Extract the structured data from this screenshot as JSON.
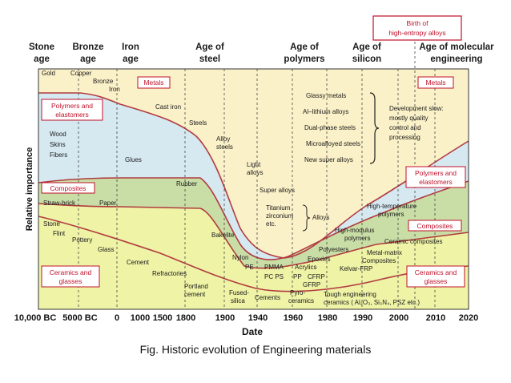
{
  "ages": {
    "stone": [
      "Stone",
      "age"
    ],
    "bronze": [
      "Bronze",
      "age"
    ],
    "iron": [
      "Iron",
      "age"
    ],
    "steel": [
      "Age of",
      "steel"
    ],
    "polymers": [
      "Age of",
      "polymers"
    ],
    "silicon": [
      "Age of",
      "silicon"
    ],
    "molecular": [
      "Age of molecular",
      "engineering"
    ],
    "hea": [
      "Birth of",
      "high-entropy alloys"
    ]
  },
  "boxes": {
    "metals": "Metals",
    "polymers": [
      "Polymers and",
      "elastomers"
    ],
    "composites": "Composites",
    "ceramics": [
      "Ceramics and",
      "glasses"
    ]
  },
  "labels": {
    "gold": "Gold",
    "copper": "Copper",
    "bronze": "Bronze",
    "iron": "Iron",
    "cast_iron": "Cast iron",
    "steels": "Steels",
    "alloy_steels": [
      "Alloy",
      "steels"
    ],
    "light_alloys": [
      "Light",
      "alloys"
    ],
    "super_alloys": "Super alloys",
    "titanium": [
      "Titanium",
      "zirconium",
      "etc."
    ],
    "alloys": "Alloys",
    "glassy_metals": "Glassy metals",
    "al_li": "Al–lithium alloys",
    "dual_phase": "Dual-phase steels",
    "microalloyed": "Microalloyed steels",
    "new_super": "New super alloys",
    "development": [
      "Development slow:",
      "mostly quality",
      "control and",
      "processing"
    ],
    "wood": "Wood",
    "skins": "Skins",
    "fibers": "Fibers",
    "glues": "Glues",
    "rubber": "Rubber",
    "straw_brick": "Straw-brick",
    "paper": "Paper",
    "stone": "Stone",
    "flint": "Flint",
    "pottery": "Pottery",
    "glass": "Glass",
    "cement": "Cement",
    "refractories": "Refractories",
    "portland": [
      "Portland",
      "cement"
    ],
    "bakelite": "Bakelite",
    "nylon": "Nylon",
    "pe": "PE",
    "pmma": [
      "PMMA",
      "PC  PS",
      "PP"
    ],
    "acrylics": "Acrylics",
    "fused_silica": [
      "Fused-",
      "silica"
    ],
    "cements": "Cements",
    "pyro": [
      "Pyro-",
      "ceramics"
    ],
    "high_temp": [
      "High-temperature",
      "polymers"
    ],
    "high_mod": [
      "High-modulus",
      "polymers"
    ],
    "polyesters": "Polyesters",
    "epoxies": "Epoxies",
    "cfrp": "CFRP",
    "gfrp": "GFRP",
    "kelvar": "Kelvar-FRP",
    "ceramic_comp": "Ceramic composites",
    "mmc": [
      "Metal-matrix",
      "Composites"
    ],
    "tough": [
      "Tough engineering",
      "ceramics ( Al₂O₃, Si₃N₄, PSZ etc.)"
    ]
  },
  "y_axis": "Relative importance",
  "x_axis": {
    "title": "Date",
    "ticks": [
      "10,000 BC",
      "5000 BC",
      "0",
      "1000",
      "1500",
      "1800",
      "1900",
      "1940",
      "1960",
      "1980",
      "1990",
      "2000",
      "2010",
      "2020"
    ]
  },
  "caption": "Fig. Historic evolution of Engineering materials",
  "colors": {
    "metals": "#fbf1c8",
    "polymers": "#d6e9f1",
    "composites": "#c9dea6",
    "ceramics": "#eef3a6",
    "curve": "#b23a3f",
    "box": "#c0102a"
  }
}
